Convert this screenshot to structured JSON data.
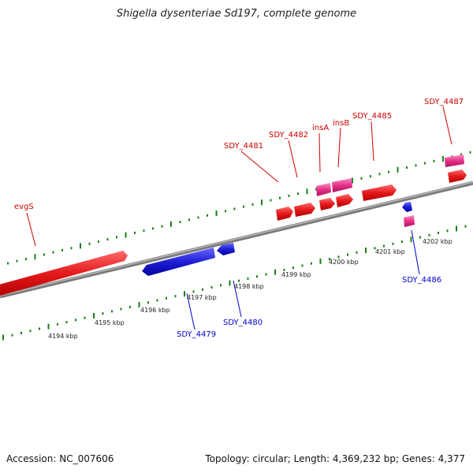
{
  "title": "Shigella dysenteriae Sd197, complete genome",
  "footer": {
    "accession": "Accession: NC_007606",
    "summary": "Topology: circular; Length: 4,369,232 bp; Genes: 4,377"
  },
  "colors": {
    "forward_gene": "#e41a1c",
    "reverse_gene": "#1f1fd6",
    "mobile_element": "#e5318a",
    "backbone": "#808080",
    "tick": "#1a7f1a",
    "forward_label": "#cc0000",
    "reverse_label": "#0000cc"
  },
  "scale_labels": [
    "4194 kbp",
    "4195 kbp",
    "4196 kbp",
    "4197 kbp",
    "4198 kbp",
    "4199 kbp",
    "4200 kbp",
    "4201 kbp",
    "4202 kbp"
  ],
  "gene_labels": {
    "forward": [
      "evgS",
      "SDY_4481",
      "SDY_4482",
      "insA",
      "insB",
      "SDY_4485",
      "SDY_4487"
    ],
    "reverse": [
      "SDY_4479",
      "SDY_4480",
      "SDY_4486"
    ]
  }
}
